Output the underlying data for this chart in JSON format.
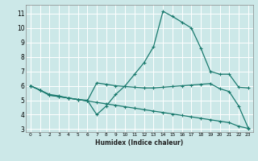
{
  "xlabel": "Humidex (Indice chaleur)",
  "background_color": "#cce8e8",
  "grid_color": "#ffffff",
  "line_color": "#1a7a6e",
  "xlim": [
    -0.5,
    23.5
  ],
  "ylim": [
    2.8,
    11.6
  ],
  "xticks": [
    0,
    1,
    2,
    3,
    4,
    5,
    6,
    7,
    8,
    9,
    10,
    11,
    12,
    13,
    14,
    15,
    16,
    17,
    18,
    19,
    20,
    21,
    22,
    23
  ],
  "yticks": [
    3,
    4,
    5,
    6,
    7,
    8,
    9,
    10,
    11
  ],
  "lines": [
    {
      "x": [
        0,
        1,
        2,
        3,
        4,
        5,
        6,
        7,
        8,
        9,
        10,
        11,
        12,
        13,
        14,
        15,
        16,
        17,
        18,
        19,
        20,
        21,
        22,
        23
      ],
      "y": [
        6.0,
        5.7,
        5.4,
        5.3,
        5.15,
        5.05,
        5.0,
        4.0,
        4.6,
        5.4,
        6.0,
        6.8,
        7.6,
        8.7,
        11.15,
        10.8,
        10.4,
        10.0,
        8.6,
        7.0,
        6.8,
        6.8,
        5.9,
        5.85
      ]
    },
    {
      "x": [
        0,
        1,
        2,
        3,
        4,
        5,
        6,
        7,
        8,
        9,
        10,
        11,
        12,
        13,
        14,
        15,
        16,
        17,
        18,
        19,
        20,
        21,
        22,
        23
      ],
      "y": [
        6.0,
        5.7,
        5.35,
        5.25,
        5.15,
        5.05,
        4.95,
        4.85,
        4.75,
        4.65,
        4.55,
        4.45,
        4.35,
        4.25,
        4.15,
        4.05,
        3.95,
        3.85,
        3.75,
        3.65,
        3.55,
        3.45,
        3.2,
        3.05
      ]
    },
    {
      "x": [
        0,
        1,
        2,
        3,
        4,
        5,
        6,
        7,
        8,
        9,
        10,
        11,
        12,
        13,
        14,
        15,
        16,
        17,
        18,
        19,
        20,
        21,
        22,
        23
      ],
      "y": [
        6.0,
        5.7,
        5.35,
        5.25,
        5.15,
        5.05,
        4.95,
        6.2,
        6.1,
        6.0,
        5.95,
        5.9,
        5.85,
        5.85,
        5.9,
        5.95,
        6.0,
        6.05,
        6.1,
        6.15,
        5.8,
        5.6,
        4.6,
        3.1
      ]
    }
  ]
}
